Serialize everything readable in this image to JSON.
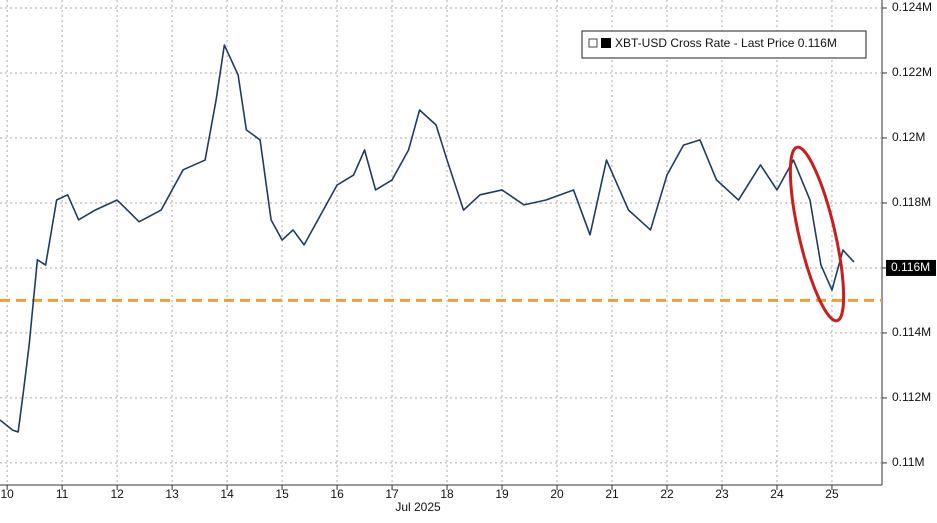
{
  "chart_data": {
    "type": "line",
    "x_label": "Jul 2025",
    "x": [
      9.87,
      10.1,
      10.2,
      10.3,
      10.4,
      10.55,
      10.7,
      10.9,
      11.1,
      11.3,
      11.6,
      12.0,
      12.4,
      12.8,
      13.2,
      13.6,
      13.8,
      13.95,
      14.2,
      14.35,
      14.6,
      14.8,
      15.0,
      15.2,
      15.4,
      15.7,
      16.0,
      16.3,
      16.5,
      16.7,
      17.0,
      17.3,
      17.5,
      17.8,
      18.0,
      18.3,
      18.6,
      19.0,
      19.4,
      19.8,
      20.3,
      20.6,
      20.9,
      21.3,
      21.7,
      22.0,
      22.3,
      22.6,
      22.9,
      23.3,
      23.7,
      24.0,
      24.3,
      24.6,
      24.8,
      25.0,
      25.2,
      25.4
    ],
    "series": [
      {
        "name": "XBT-USD Cross Rate - Last Price 0.116M",
        "color": "#1d3c66",
        "values": [
          0.11132,
          0.11101,
          0.11095,
          0.11225,
          0.11363,
          0.11625,
          0.11609,
          0.11809,
          0.11825,
          0.11748,
          0.11778,
          0.11809,
          0.11742,
          0.11778,
          0.11902,
          0.11932,
          0.12117,
          0.12286,
          0.12194,
          0.12025,
          0.11994,
          0.11748,
          0.11686,
          0.11717,
          0.11671,
          0.11763,
          0.11855,
          0.11886,
          0.11963,
          0.1184,
          0.11871,
          0.11963,
          0.12086,
          0.1204,
          0.11932,
          0.11778,
          0.11825,
          0.1184,
          0.11794,
          0.11809,
          0.1184,
          0.11702,
          0.11932,
          0.11778,
          0.11717,
          0.11886,
          0.11978,
          0.11994,
          0.11871,
          0.11809,
          0.11917,
          0.1184,
          0.11932,
          0.11809,
          0.11609,
          0.11532,
          0.11655,
          0.11618
        ]
      }
    ],
    "last_price": {
      "value": 0.116,
      "label": "0.116M"
    },
    "reference_line": {
      "value": 0.115,
      "color": "#f0a030"
    },
    "xlim": [
      9.87,
      25.91
    ],
    "xticks": [
      10,
      11,
      12,
      13,
      14,
      15,
      16,
      17,
      18,
      19,
      20,
      21,
      22,
      23,
      24,
      25
    ],
    "ylim": [
      0.10932,
      0.124246
    ],
    "yticks": [
      {
        "value": 0.11,
        "label": "0.11M"
      },
      {
        "value": 0.112,
        "label": "0.112M"
      },
      {
        "value": 0.114,
        "label": "0.114M"
      },
      {
        "value": 0.116,
        "label": "0.116M"
      },
      {
        "value": 0.118,
        "label": "0.118M"
      },
      {
        "value": 0.12,
        "label": "0.12M"
      },
      {
        "value": 0.122,
        "label": "0.122M"
      },
      {
        "value": 0.124,
        "label": "0.124M"
      }
    ],
    "grid": true
  }
}
